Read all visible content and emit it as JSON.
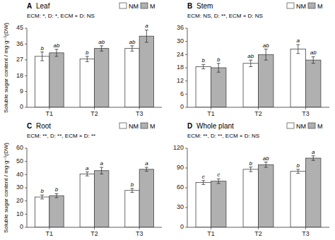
{
  "chart_data": [
    {
      "type": "bar",
      "label": "A",
      "title": "Leaf",
      "subtitle": "ECM: *, D: *, ECM × D: NS",
      "ylabel": "Soluble sugar content / mg·g⁻¹(DW)",
      "categories": [
        "T1",
        "T2",
        "T3"
      ],
      "series": [
        {
          "name": "NM",
          "color": "#ffffff",
          "values": [
            29.0,
            27.5,
            33.5
          ],
          "errors": [
            2.5,
            1.5,
            1.5
          ],
          "significance": [
            "b",
            "b",
            "ab"
          ]
        },
        {
          "name": "M",
          "color": "#b0b0b0",
          "values": [
            31.0,
            33.5,
            40.5
          ],
          "errors": [
            2.0,
            1.5,
            3.5
          ],
          "significance": [
            "ab",
            "ab",
            "a"
          ]
        }
      ],
      "ylim": [
        0,
        45
      ],
      "yticks": [
        0,
        9,
        18,
        27,
        36,
        45
      ],
      "grid": false,
      "legend": "upper right"
    },
    {
      "type": "bar",
      "label": "B",
      "title": "Stem",
      "subtitle": "ECM: NS, D: **, ECM × D: NS",
      "categories": [
        "T1",
        "T2",
        "T3"
      ],
      "series": [
        {
          "name": "NM",
          "color": "#ffffff",
          "values": [
            18.5,
            20.0,
            26.5
          ],
          "errors": [
            1.0,
            1.5,
            2.0
          ],
          "significance": [
            "b",
            "ab",
            "a"
          ]
        },
        {
          "name": "M",
          "color": "#b0b0b0",
          "values": [
            18.0,
            24.0,
            21.5
          ],
          "errors": [
            2.0,
            2.5,
            1.5
          ],
          "significance": [
            "b",
            "ab",
            "ab"
          ]
        }
      ],
      "ylim": [
        0,
        36
      ],
      "yticks": [
        0,
        6,
        12,
        18,
        24,
        30,
        36
      ],
      "grid": false,
      "legend": "upper right"
    },
    {
      "type": "bar",
      "label": "C",
      "title": "Root",
      "subtitle": "ECM: **, D: **, ECM × D: **",
      "ylabel": "Soluble sugar content / mg·g⁻¹(DW)",
      "categories": [
        "T1",
        "T2",
        "T3"
      ],
      "series": [
        {
          "name": "NM",
          "color": "#ffffff",
          "values": [
            23.0,
            40.5,
            28.0
          ],
          "errors": [
            1.5,
            1.5,
            1.5
          ],
          "significance": [
            "b",
            "a",
            "b"
          ]
        },
        {
          "name": "M",
          "color": "#b0b0b0",
          "values": [
            24.0,
            43.0,
            44.0
          ],
          "errors": [
            1.5,
            2.5,
            1.5
          ],
          "significance": [
            "b",
            "a",
            "a"
          ]
        }
      ],
      "ylim": [
        0,
        60
      ],
      "yticks": [
        0,
        10,
        20,
        30,
        40,
        50,
        60
      ],
      "grid": false,
      "legend": "upper right"
    },
    {
      "type": "bar",
      "label": "D",
      "title": "Whole plant",
      "subtitle": "ECM: **, D: **, ECM × D: NS",
      "categories": [
        "T1",
        "T2",
        "T3"
      ],
      "series": [
        {
          "name": "NM",
          "color": "#ffffff",
          "values": [
            68.0,
            88.0,
            85.0
          ],
          "errors": [
            3.0,
            3.5,
            3.0
          ],
          "significance": [
            "c",
            "b",
            "b"
          ]
        },
        {
          "name": "M",
          "color": "#b0b0b0",
          "values": [
            70.0,
            95.0,
            105.0
          ],
          "errors": [
            3.5,
            4.0,
            3.5
          ],
          "significance": [
            "c",
            "ab",
            "a"
          ]
        }
      ],
      "ylim": [
        0,
        120
      ],
      "yticks": [
        0,
        30,
        60,
        90,
        120
      ],
      "grid": false,
      "legend": "upper right"
    }
  ]
}
